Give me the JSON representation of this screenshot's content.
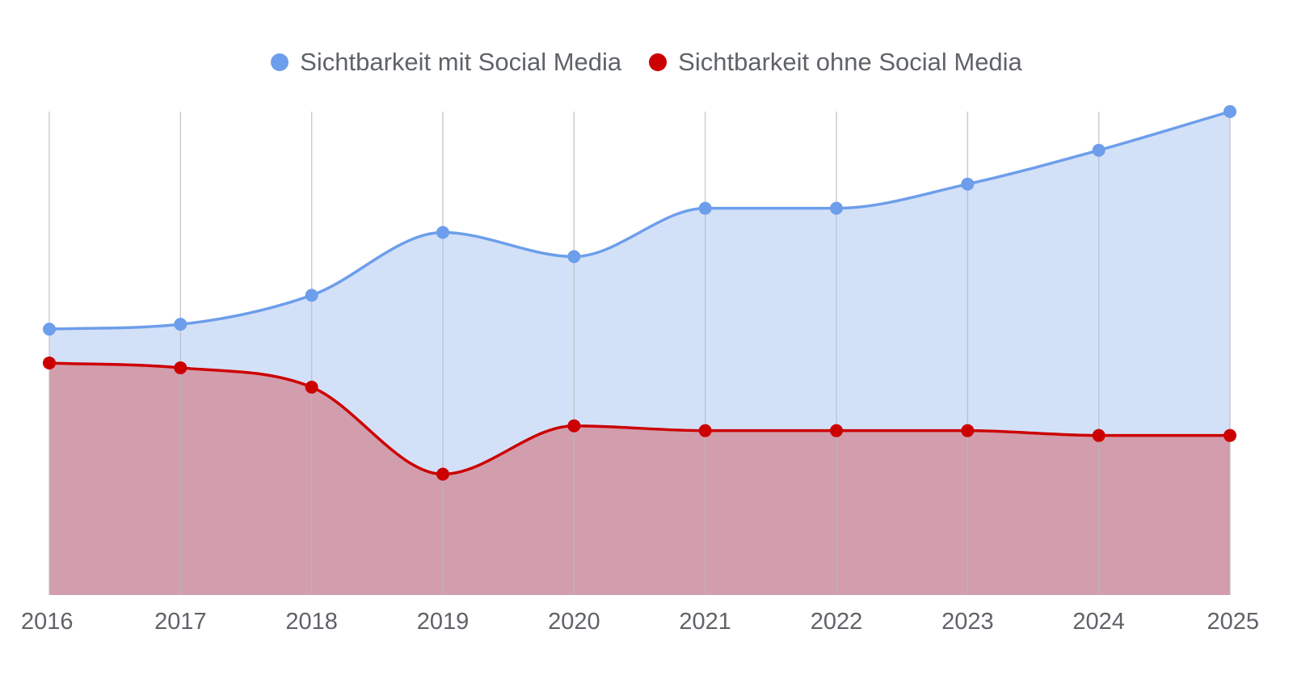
{
  "chart_data": {
    "type": "area",
    "title": "",
    "xlabel": "",
    "ylabel": "",
    "categories": [
      "2016",
      "2017",
      "2018",
      "2019",
      "2020",
      "2021",
      "2022",
      "2023",
      "2024",
      "2025"
    ],
    "ylim": [
      0,
      100
    ],
    "grid": "vertical",
    "legend_position": "top-center",
    "series": [
      {
        "name": "Sichtbarkeit mit Social Media",
        "color": "#6d9eeb",
        "fill": "#d3e1f8",
        "values": [
          55,
          56,
          62,
          75,
          70,
          80,
          80,
          85,
          92,
          100
        ]
      },
      {
        "name": "Sichtbarkeit ohne Social Media",
        "color": "#cc0000",
        "fill": "#d29dac",
        "values": [
          48,
          47,
          43,
          25,
          35,
          34,
          34,
          34,
          33,
          33
        ]
      }
    ]
  }
}
